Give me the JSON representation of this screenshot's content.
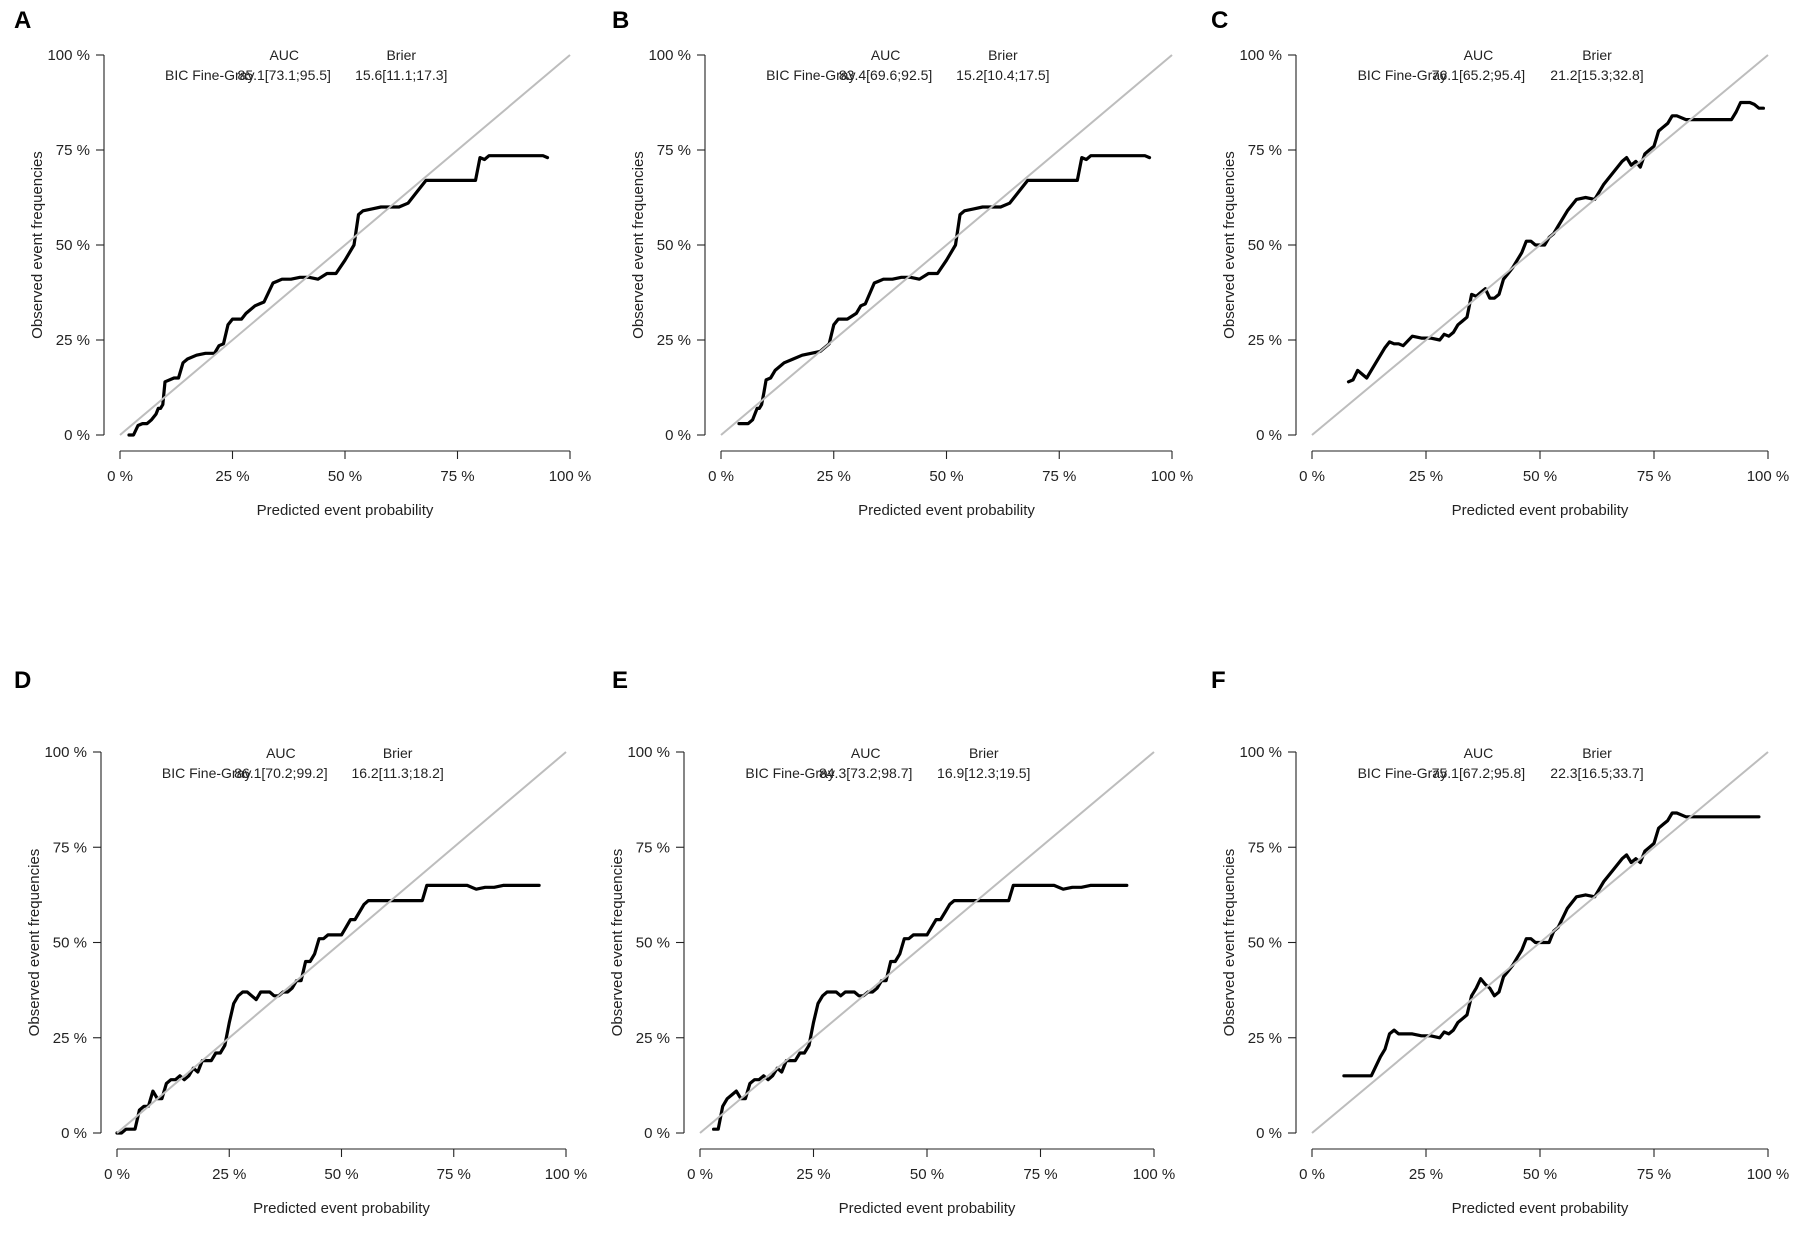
{
  "figure": {
    "background": "#ffffff",
    "curve_color": "#000000",
    "reference_color": "#bdbdbd"
  },
  "chart_data": [
    {
      "panel": "A",
      "type": "line",
      "xlabel": "Predicted event probability",
      "ylabel": "Observed event frequencies",
      "xlim": [
        0,
        100
      ],
      "ylim": [
        0,
        100
      ],
      "xticks": [
        "0 %",
        "25 %",
        "50 %",
        "75 %",
        "100 %"
      ],
      "yticks": [
        "0 %",
        "25 %",
        "50 %",
        "75 %",
        "100 %"
      ],
      "legend": {
        "model": "BIC Fine-Gray",
        "auc_header": "AUC",
        "brier_header": "Brier",
        "auc": "85.1[73.1;95.5]",
        "brier": "15.6[11.1;17.3]"
      },
      "series": [
        {
          "name": "Calibration curve",
          "x": [
            2,
            3,
            4,
            5,
            6,
            7,
            8,
            8.5,
            9,
            9.5,
            10,
            12,
            13,
            14,
            15,
            17,
            19,
            21,
            22,
            23,
            24,
            25,
            26,
            27,
            28,
            30,
            31,
            32,
            34,
            35,
            36,
            38,
            40,
            42,
            44,
            46,
            48,
            50,
            52,
            53,
            54,
            56,
            58,
            60,
            62,
            64,
            66,
            68,
            70,
            72,
            74,
            75,
            77,
            79,
            80,
            81,
            82,
            84,
            86,
            88,
            90,
            92,
            94,
            95
          ],
          "y": [
            0,
            0,
            2.5,
            3,
            3,
            4,
            5.5,
            7,
            7,
            8,
            14,
            15,
            15,
            19,
            20,
            21,
            21.5,
            21.5,
            23.5,
            24,
            29,
            30.5,
            30.5,
            30.5,
            32,
            34,
            34.5,
            35,
            40,
            40.5,
            41,
            41,
            41.5,
            41.5,
            41,
            42.5,
            42.5,
            46,
            50,
            58,
            59,
            59.5,
            60,
            60,
            60,
            61,
            64,
            67,
            67,
            67,
            67,
            67,
            67,
            67,
            73,
            72.5,
            73.5,
            73.5,
            73.5,
            73.5,
            73.5,
            73.5,
            73.5,
            73
          ]
        },
        {
          "name": "Reference",
          "x": [
            0,
            100
          ],
          "y": [
            0,
            100
          ]
        }
      ]
    },
    {
      "panel": "B",
      "type": "line",
      "xlabel": "Predicted event probability",
      "ylabel": "Observed event frequencies",
      "xlim": [
        0,
        100
      ],
      "ylim": [
        0,
        100
      ],
      "xticks": [
        "0 %",
        "25 %",
        "50 %",
        "75 %",
        "100 %"
      ],
      "yticks": [
        "0 %",
        "25 %",
        "50 %",
        "75 %",
        "100 %"
      ],
      "legend": {
        "model": "BIC Fine-Gray",
        "auc_header": "AUC",
        "brier_header": "Brier",
        "auc": "83.4[69.6;92.5]",
        "brier": "15.2[10.4;17.5]"
      },
      "series": [
        {
          "name": "Calibration curve",
          "x": [
            4,
            5,
            6,
            7,
            8,
            8.5,
            9,
            9.5,
            10,
            11,
            12,
            14,
            16,
            18,
            20,
            22,
            24,
            25,
            26,
            27,
            28,
            30,
            31,
            32,
            34,
            35,
            36,
            38,
            40,
            42,
            44,
            46,
            48,
            50,
            52,
            53,
            54,
            56,
            58,
            60,
            62,
            64,
            66,
            68,
            70,
            72,
            74,
            75,
            77,
            79,
            80,
            81,
            82,
            84,
            86,
            88,
            90,
            92,
            94,
            95
          ],
          "y": [
            3,
            3,
            3,
            4,
            7,
            7,
            8,
            11,
            14.5,
            15,
            17,
            19,
            20,
            21,
            21.5,
            22,
            24,
            29,
            30.5,
            30.5,
            30.5,
            32,
            34,
            34.5,
            40,
            40.5,
            41,
            41,
            41.5,
            41.5,
            41,
            42.5,
            42.5,
            46,
            50,
            58,
            59,
            59.5,
            60,
            60,
            60,
            61,
            64,
            67,
            67,
            67,
            67,
            67,
            67,
            67,
            73,
            72.5,
            73.5,
            73.5,
            73.5,
            73.5,
            73.5,
            73.5,
            73.5,
            73
          ]
        },
        {
          "name": "Reference",
          "x": [
            0,
            100
          ],
          "y": [
            0,
            100
          ]
        }
      ]
    },
    {
      "panel": "C",
      "type": "line",
      "xlabel": "Predicted event probability",
      "ylabel": "Observed event frequencies",
      "xlim": [
        0,
        100
      ],
      "ylim": [
        0,
        100
      ],
      "xticks": [
        "0 %",
        "25 %",
        "50 %",
        "75 %",
        "100 %"
      ],
      "yticks": [
        "0 %",
        "25 %",
        "50 %",
        "75 %",
        "100 %"
      ],
      "legend": {
        "model": "BIC Fine-Gray",
        "auc_header": "AUC",
        "brier_header": "Brier",
        "auc": "76.1[65.2;95.4]",
        "brier": "21.2[15.3;32.8]"
      },
      "series": [
        {
          "name": "Calibration curve",
          "x": [
            8,
            9,
            10,
            12,
            14,
            16,
            17,
            18,
            19,
            20,
            22,
            24,
            26,
            28,
            29,
            30,
            31,
            32,
            33,
            34,
            35,
            36,
            37,
            38,
            39,
            40,
            41,
            42,
            43,
            44,
            45,
            46,
            47,
            48,
            49,
            50,
            51,
            52,
            53,
            54,
            56,
            58,
            60,
            62,
            64,
            66,
            68,
            69,
            70,
            71,
            72,
            73,
            74,
            75,
            76,
            77,
            78,
            79,
            80,
            82,
            84,
            86,
            88,
            90,
            92,
            93,
            94,
            95,
            96,
            97,
            98,
            99
          ],
          "y": [
            14,
            14.5,
            17,
            15,
            19,
            23,
            24.5,
            24,
            24,
            23.5,
            26,
            25.5,
            25.5,
            25,
            26.5,
            26,
            27,
            29,
            30,
            31,
            37,
            36.5,
            37.5,
            38.5,
            36,
            36,
            37,
            41,
            42.5,
            44,
            46,
            48,
            51,
            51,
            50,
            50,
            50,
            52,
            53,
            55,
            59,
            62,
            62.5,
            62,
            66,
            69,
            72,
            73,
            71,
            72,
            70.5,
            74,
            75,
            76,
            80,
            81,
            82,
            84,
            84,
            83,
            83,
            83,
            83,
            83,
            83,
            85,
            87.5,
            87.5,
            87.5,
            87,
            86,
            86
          ]
        },
        {
          "name": "Reference",
          "x": [
            0,
            100
          ],
          "y": [
            0,
            100
          ]
        }
      ]
    },
    {
      "panel": "D",
      "type": "line",
      "xlabel": "Predicted event probability",
      "ylabel": "Observed event frequencies",
      "xlim": [
        0,
        100
      ],
      "ylim": [
        0,
        100
      ],
      "xticks": [
        "0 %",
        "25 %",
        "50 %",
        "75 %",
        "100 %"
      ],
      "yticks": [
        "0 %",
        "25 %",
        "50 %",
        "75 %",
        "100 %"
      ],
      "legend": {
        "model": "BIC Fine-Gray",
        "auc_header": "AUC",
        "brier_header": "Brier",
        "auc": "86.1[70.2;99.2]",
        "brier": "16.2[11.3;18.2]"
      },
      "series": [
        {
          "name": "Calibration curve",
          "x": [
            0,
            1,
            2,
            3,
            4,
            5,
            6,
            7,
            8,
            9,
            10,
            11,
            12,
            13,
            14,
            15,
            16,
            17,
            18,
            19,
            20,
            21,
            22,
            23,
            24,
            25,
            26,
            27,
            28,
            29,
            30,
            31,
            32,
            33,
            34,
            35,
            36,
            37,
            38,
            39,
            40,
            41,
            42,
            43,
            44,
            45,
            46,
            47,
            48,
            49,
            50,
            51,
            52,
            53,
            54,
            55,
            56,
            57,
            58,
            60,
            62,
            64,
            66,
            68,
            69,
            70,
            72,
            74,
            76,
            78,
            80,
            82,
            84,
            86,
            88,
            90,
            92,
            94
          ],
          "y": [
            0,
            0,
            1,
            1,
            1,
            6,
            7,
            7,
            11,
            9,
            9,
            13,
            14,
            14,
            15,
            14,
            15,
            17,
            16,
            19,
            19,
            19,
            21,
            21,
            23,
            29,
            34,
            36,
            37,
            37,
            36,
            35,
            37,
            37,
            37,
            36,
            36,
            37,
            37,
            38,
            40,
            40,
            45,
            45,
            47,
            51,
            51,
            52,
            52,
            52,
            52,
            54,
            56,
            56,
            58,
            60,
            61,
            61,
            61,
            61,
            61,
            61,
            61,
            61,
            65,
            65,
            65,
            65,
            65,
            65,
            64,
            64.5,
            64.5,
            65,
            65,
            65,
            65,
            65
          ]
        },
        {
          "name": "Reference",
          "x": [
            0,
            100
          ],
          "y": [
            0,
            100
          ]
        }
      ]
    },
    {
      "panel": "E",
      "type": "line",
      "xlabel": "Predicted event probability",
      "ylabel": "Observed event frequencies",
      "xlim": [
        0,
        100
      ],
      "ylim": [
        0,
        100
      ],
      "xticks": [
        "0 %",
        "25 %",
        "50 %",
        "75 %",
        "100 %"
      ],
      "yticks": [
        "0 %",
        "25 %",
        "50 %",
        "75 %",
        "100 %"
      ],
      "legend": {
        "model": "BIC Fine-Gray",
        "auc_header": "AUC",
        "brier_header": "Brier",
        "auc": "84.3[73.2;98.7]",
        "brier": "16.9[12.3;19.5]"
      },
      "series": [
        {
          "name": "Calibration curve",
          "x": [
            3,
            4,
            5,
            6,
            7,
            8,
            9,
            10,
            11,
            12,
            13,
            14,
            15,
            16,
            17,
            18,
            19,
            20,
            21,
            22,
            23,
            24,
            25,
            26,
            27,
            28,
            29,
            30,
            31,
            32,
            33,
            34,
            35,
            36,
            37,
            38,
            39,
            40,
            41,
            42,
            43,
            44,
            45,
            46,
            47,
            48,
            49,
            50,
            51,
            52,
            53,
            54,
            55,
            56,
            57,
            58,
            60,
            62,
            64,
            66,
            68,
            69,
            70,
            72,
            74,
            76,
            78,
            80,
            82,
            84,
            86,
            88,
            90,
            92,
            94
          ],
          "y": [
            1,
            1,
            7,
            9,
            10,
            11,
            9,
            9,
            13,
            14,
            14,
            15,
            14,
            15,
            17,
            16,
            19,
            19,
            19,
            21,
            21,
            23,
            29,
            34,
            36,
            37,
            37,
            37,
            36,
            37,
            37,
            37,
            36,
            36,
            37,
            37,
            38,
            40,
            40,
            45,
            45,
            47,
            51,
            51,
            52,
            52,
            52,
            52,
            54,
            56,
            56,
            58,
            60,
            61,
            61,
            61,
            61,
            61,
            61,
            61,
            61,
            65,
            65,
            65,
            65,
            65,
            65,
            64,
            64.5,
            64.5,
            65,
            65,
            65,
            65,
            65
          ]
        },
        {
          "name": "Reference",
          "x": [
            0,
            100
          ],
          "y": [
            0,
            100
          ]
        }
      ]
    },
    {
      "panel": "F",
      "type": "line",
      "xlabel": "Predicted event probability",
      "ylabel": "Observed event frequencies",
      "xlim": [
        0,
        100
      ],
      "ylim": [
        0,
        100
      ],
      "xticks": [
        "0 %",
        "25 %",
        "50 %",
        "75 %",
        "100 %"
      ],
      "yticks": [
        "0 %",
        "25 %",
        "50 %",
        "75 %",
        "100 %"
      ],
      "legend": {
        "model": "BIC Fine-Gray",
        "auc_header": "AUC",
        "brier_header": "Brier",
        "auc": "75.1[67.2;95.8]",
        "brier": "22.3[16.5;33.7]"
      },
      "series": [
        {
          "name": "Calibration curve",
          "x": [
            7,
            9,
            11,
            13,
            15,
            16,
            17,
            18,
            19,
            20,
            22,
            24,
            26,
            28,
            29,
            30,
            31,
            32,
            33,
            34,
            35,
            36,
            37,
            38,
            39,
            40,
            41,
            42,
            43,
            44,
            45,
            46,
            47,
            48,
            49,
            50,
            51,
            52,
            53,
            54,
            56,
            58,
            60,
            62,
            64,
            66,
            68,
            69,
            70,
            71,
            72,
            73,
            74,
            75,
            76,
            77,
            78,
            79,
            80,
            82,
            84,
            86,
            88,
            90,
            92,
            94,
            96,
            98
          ],
          "y": [
            15,
            15,
            15,
            15,
            20,
            22,
            26,
            27,
            26,
            26,
            26,
            25.5,
            25.5,
            25,
            26.5,
            26,
            27,
            29,
            30,
            31,
            36,
            38,
            40.5,
            39,
            38,
            36,
            37,
            41,
            42.5,
            44,
            46,
            48,
            51,
            51,
            50,
            50,
            50,
            50,
            53,
            54,
            59,
            62,
            62.5,
            62,
            66,
            69,
            72,
            73,
            71,
            72,
            71,
            74,
            75,
            76,
            80,
            81,
            82,
            84,
            84,
            83,
            83,
            83,
            83,
            83,
            83,
            83,
            83,
            83
          ]
        },
        {
          "name": "Reference",
          "x": [
            0,
            100
          ],
          "y": [
            0,
            100
          ]
        }
      ]
    }
  ]
}
